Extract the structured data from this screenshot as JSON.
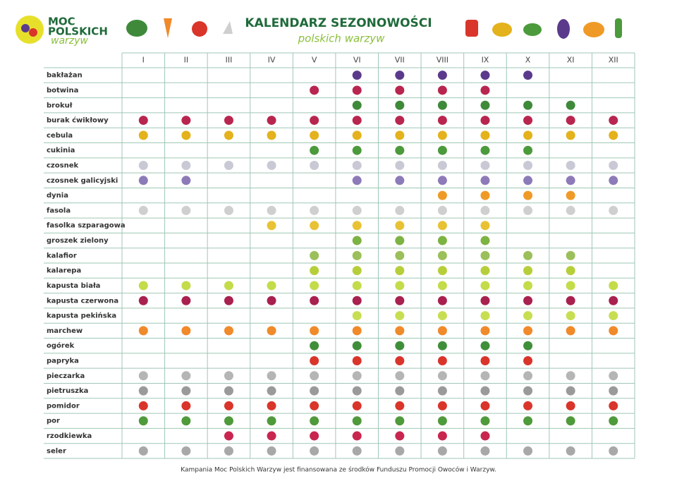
{
  "header": {
    "logo_line1": "MOC",
    "logo_line2": "POLSKICH",
    "logo_line3": "warzyw",
    "title": "KALENDARZ SEZONOWOŚCI",
    "subtitle": "polskich warzyw"
  },
  "table": {
    "months": [
      "I",
      "II",
      "III",
      "IV",
      "V",
      "VI",
      "VII",
      "VIII",
      "IX",
      "X",
      "XI",
      "XII"
    ],
    "rows": [
      {
        "name": "bakłażan",
        "color": "#5b3a8c",
        "season": [
          false,
          false,
          false,
          false,
          false,
          true,
          true,
          true,
          true,
          true,
          false,
          false
        ]
      },
      {
        "name": "botwina",
        "color": "#b8264f",
        "season": [
          false,
          false,
          false,
          false,
          true,
          true,
          true,
          true,
          true,
          false,
          false,
          false
        ]
      },
      {
        "name": "brokuł",
        "color": "#3e8a3a",
        "season": [
          false,
          false,
          false,
          false,
          false,
          true,
          true,
          true,
          true,
          true,
          true,
          false
        ]
      },
      {
        "name": "burak ćwikłowy",
        "color": "#b8264f",
        "season": [
          true,
          true,
          true,
          true,
          true,
          true,
          true,
          true,
          true,
          true,
          true,
          true
        ]
      },
      {
        "name": "cebula",
        "color": "#e3b21c",
        "season": [
          true,
          true,
          true,
          true,
          true,
          true,
          true,
          true,
          true,
          true,
          true,
          true
        ]
      },
      {
        "name": "cukinia",
        "color": "#4b9a3b",
        "season": [
          false,
          false,
          false,
          false,
          true,
          true,
          true,
          true,
          true,
          true,
          false,
          false
        ]
      },
      {
        "name": "czosnek",
        "color": "#c9c9d6",
        "season": [
          true,
          true,
          true,
          true,
          true,
          true,
          true,
          true,
          true,
          true,
          true,
          true
        ]
      },
      {
        "name": "czosnek galicyjski",
        "color": "#8c7bb8",
        "season": [
          true,
          true,
          false,
          false,
          false,
          true,
          true,
          true,
          true,
          true,
          true,
          true
        ]
      },
      {
        "name": "dynia",
        "color": "#ef9a27",
        "season": [
          false,
          false,
          false,
          false,
          false,
          false,
          false,
          true,
          true,
          true,
          true,
          false
        ]
      },
      {
        "name": "fasola",
        "color": "#cfcfcf",
        "season": [
          true,
          true,
          true,
          true,
          true,
          true,
          true,
          true,
          true,
          true,
          true,
          true
        ]
      },
      {
        "name": "fasolka szparagowa",
        "color": "#e8c234",
        "season": [
          false,
          false,
          false,
          true,
          true,
          true,
          true,
          true,
          true,
          false,
          false,
          false
        ]
      },
      {
        "name": "groszek zielony",
        "color": "#7cb342",
        "season": [
          false,
          false,
          false,
          false,
          false,
          true,
          true,
          true,
          true,
          false,
          false,
          false
        ]
      },
      {
        "name": "kalafior",
        "color": "#9bbf5a",
        "season": [
          false,
          false,
          false,
          false,
          true,
          true,
          true,
          true,
          true,
          true,
          true,
          false
        ]
      },
      {
        "name": "kalarepa",
        "color": "#b5cf3a",
        "season": [
          false,
          false,
          false,
          false,
          true,
          true,
          true,
          true,
          true,
          true,
          true,
          false
        ]
      },
      {
        "name": "kapusta biała",
        "color": "#c3dc4a",
        "season": [
          true,
          true,
          true,
          true,
          true,
          true,
          true,
          true,
          true,
          true,
          true,
          true
        ]
      },
      {
        "name": "kapusta czerwona",
        "color": "#a8214f",
        "season": [
          true,
          true,
          true,
          true,
          true,
          true,
          true,
          true,
          true,
          true,
          true,
          true
        ]
      },
      {
        "name": "kapusta pekińska",
        "color": "#c8de52",
        "season": [
          false,
          false,
          false,
          false,
          false,
          true,
          true,
          true,
          true,
          true,
          true,
          true
        ]
      },
      {
        "name": "marchew",
        "color": "#f08a2a",
        "season": [
          true,
          true,
          true,
          true,
          true,
          true,
          true,
          true,
          true,
          true,
          true,
          true
        ]
      },
      {
        "name": "ogórek",
        "color": "#3f8f3a",
        "season": [
          false,
          false,
          false,
          false,
          true,
          true,
          true,
          true,
          true,
          true,
          false,
          false
        ]
      },
      {
        "name": "papryka",
        "color": "#d9352b",
        "season": [
          false,
          false,
          false,
          false,
          true,
          true,
          true,
          true,
          true,
          true,
          false,
          false
        ]
      },
      {
        "name": "pieczarka",
        "color": "#b5b5b5",
        "season": [
          true,
          true,
          true,
          true,
          true,
          true,
          true,
          true,
          true,
          true,
          true,
          true
        ]
      },
      {
        "name": "pietruszka",
        "color": "#9a9a9a",
        "season": [
          true,
          true,
          true,
          true,
          true,
          true,
          true,
          true,
          true,
          true,
          true,
          true
        ]
      },
      {
        "name": "pomidor",
        "color": "#d9352b",
        "season": [
          true,
          true,
          true,
          true,
          true,
          true,
          true,
          true,
          true,
          true,
          true,
          true
        ]
      },
      {
        "name": "por",
        "color": "#4f9a3b",
        "season": [
          true,
          true,
          true,
          true,
          true,
          true,
          true,
          true,
          true,
          true,
          true,
          true
        ]
      },
      {
        "name": "rzodkiewka",
        "color": "#c8264f",
        "season": [
          false,
          false,
          true,
          true,
          true,
          true,
          true,
          true,
          true,
          false,
          false,
          false
        ]
      },
      {
        "name": "seler",
        "color": "#a8a8a8",
        "season": [
          true,
          true,
          true,
          true,
          true,
          true,
          true,
          true,
          true,
          true,
          true,
          true
        ]
      }
    ]
  },
  "footer": {
    "text": "Kampania Moc Polskich Warzyw jest finansowana ze środków Funduszu Promocji Owoców i Warzyw."
  }
}
